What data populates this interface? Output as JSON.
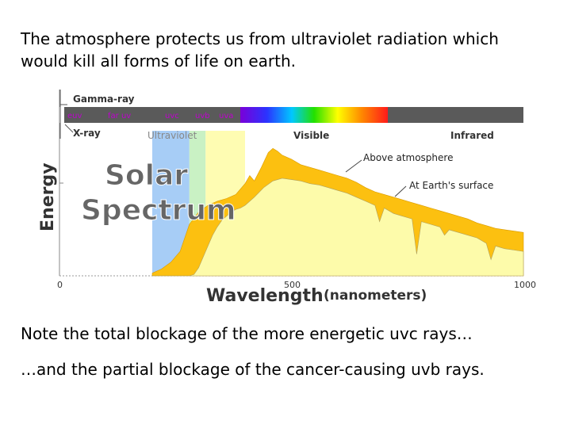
{
  "slide": {
    "heading": "The atmosphere protects us from ultraviolet radiation which would kill all forms of life on earth.",
    "note1": "Note the total blockage of the more energetic uvc rays…",
    "note2": "…and the partial blockage of the cancer-causing uvb rays."
  },
  "chart_data": {
    "type": "area",
    "title": "Solar Spectrum",
    "title_line1": "Solar",
    "title_line2": "Spectrum",
    "xlabel": "Wavelength",
    "xlabel_unit": "(nanometers)",
    "ylabel": "Energy",
    "xlim": [
      0,
      1000
    ],
    "ylim": [
      0,
      1
    ],
    "x_ticks": [
      "0",
      "500",
      "1000"
    ],
    "band_labels": {
      "gamma": "Gamma-ray",
      "xray": "X-ray",
      "euv": "euv",
      "far_uv": "far uv",
      "uvc": "uvc",
      "uvb": "uvb",
      "uva": "uva",
      "ultraviolet": "Ultraviolet",
      "visible": "Visible",
      "infrared": "Infrared"
    },
    "regions": [
      {
        "name": "uvc",
        "x": [
          200,
          280
        ],
        "color": "#a7cdf6"
      },
      {
        "name": "uvb",
        "x": [
          280,
          315
        ],
        "color": "#c9f1c4"
      },
      {
        "name": "uva",
        "x": [
          315,
          400
        ],
        "color": "#fefcb2"
      }
    ],
    "series": [
      {
        "name": "Above atmosphere",
        "color": "#fcc010",
        "x": [
          200,
          220,
          240,
          260,
          280,
          300,
          320,
          340,
          360,
          380,
          400,
          410,
          420,
          435,
          450,
          460,
          470,
          480,
          500,
          520,
          540,
          560,
          580,
          600,
          620,
          640,
          660,
          680,
          700,
          720,
          740,
          760,
          780,
          800,
          820,
          840,
          860,
          880,
          900,
          920,
          940,
          960,
          980,
          1000
        ],
        "y": [
          0.02,
          0.05,
          0.1,
          0.18,
          0.38,
          0.47,
          0.52,
          0.55,
          0.57,
          0.6,
          0.68,
          0.74,
          0.7,
          0.8,
          0.91,
          0.94,
          0.92,
          0.89,
          0.86,
          0.82,
          0.8,
          0.78,
          0.76,
          0.74,
          0.72,
          0.69,
          0.65,
          0.62,
          0.6,
          0.58,
          0.56,
          0.54,
          0.52,
          0.5,
          0.48,
          0.46,
          0.44,
          0.42,
          0.39,
          0.37,
          0.35,
          0.34,
          0.33,
          0.32
        ]
      },
      {
        "name": "At Earth's surface",
        "color": "#fdfbaa",
        "x": [
          200,
          280,
          290,
          300,
          310,
          320,
          330,
          340,
          350,
          360,
          370,
          380,
          390,
          400,
          420,
          440,
          460,
          480,
          500,
          520,
          540,
          560,
          580,
          600,
          620,
          640,
          660,
          680,
          690,
          700,
          710,
          720,
          740,
          760,
          770,
          780,
          800,
          820,
          830,
          840,
          860,
          880,
          900,
          920,
          930,
          940,
          960,
          980,
          1000
        ],
        "y": [
          0,
          0,
          0.01,
          0.06,
          0.14,
          0.22,
          0.3,
          0.36,
          0.41,
          0.44,
          0.47,
          0.49,
          0.5,
          0.52,
          0.58,
          0.65,
          0.7,
          0.72,
          0.71,
          0.7,
          0.68,
          0.67,
          0.65,
          0.63,
          0.61,
          0.58,
          0.55,
          0.52,
          0.4,
          0.5,
          0.48,
          0.46,
          0.44,
          0.42,
          0.16,
          0.4,
          0.38,
          0.36,
          0.3,
          0.34,
          0.32,
          0.3,
          0.28,
          0.24,
          0.12,
          0.22,
          0.2,
          0.19,
          0.18
        ]
      }
    ],
    "annotations": [
      {
        "text": "Above atmosphere",
        "target": "Above atmosphere"
      },
      {
        "text": "At Earth's surface",
        "target": "At Earth's surface"
      }
    ]
  }
}
